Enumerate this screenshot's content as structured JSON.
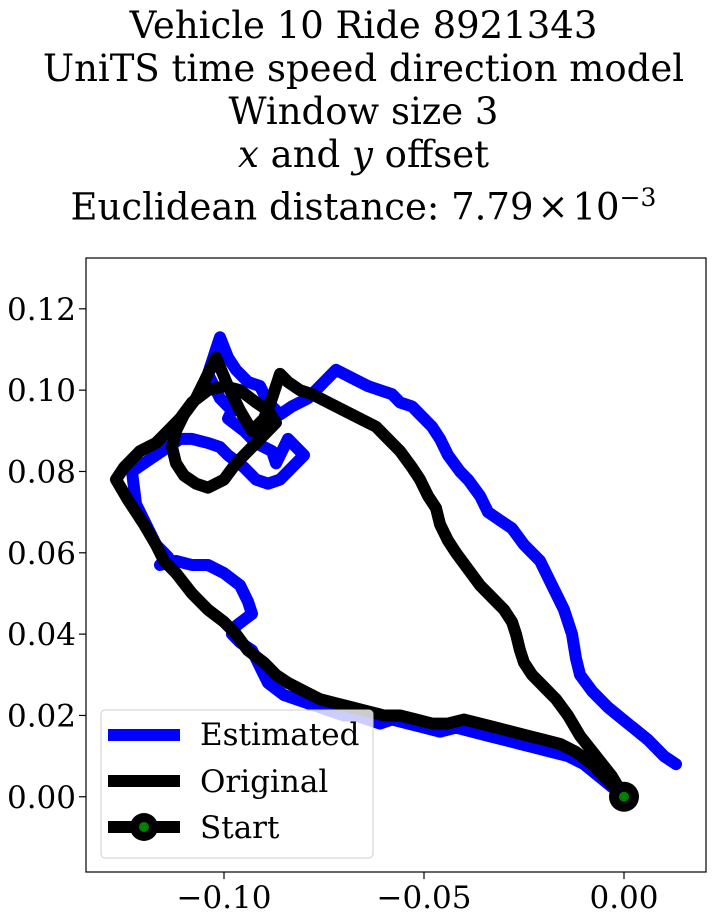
{
  "chart_data": {
    "type": "line",
    "title": {
      "line1": "Vehicle 10 Ride 8921343",
      "line2": "UniTS time speed direction model",
      "line3": "Window size 3",
      "line4_x": "x",
      "line4_and": " and ",
      "line4_y": "y",
      "line4_rest": " offset",
      "line5_prefix": "Euclidean distance: 7.79",
      "line5_times": "×",
      "line5_base": "10",
      "line5_exp": "−3"
    },
    "xlabel": "",
    "ylabel": "",
    "xlim": [
      -0.1345,
      0.0205
    ],
    "ylim": [
      -0.0185,
      0.1325
    ],
    "grid": false,
    "legend_position": "lower-left",
    "x_ticks": [
      {
        "value": -0.1,
        "label": "−0.10"
      },
      {
        "value": -0.05,
        "label": "−0.05"
      },
      {
        "value": 0.0,
        "label": "0.00"
      }
    ],
    "y_ticks": [
      {
        "value": 0.0,
        "label": "0.00"
      },
      {
        "value": 0.02,
        "label": "0.02"
      },
      {
        "value": 0.04,
        "label": "0.04"
      },
      {
        "value": 0.06,
        "label": "0.06"
      },
      {
        "value": 0.08,
        "label": "0.08"
      },
      {
        "value": 0.1,
        "label": "0.10"
      },
      {
        "value": 0.12,
        "label": "0.12"
      }
    ],
    "series": [
      {
        "name": "Estimated",
        "color": "#0000ff",
        "x": [
          0.013,
          0.01,
          0.006,
          0.001,
          -0.004,
          -0.008,
          -0.011,
          -0.012,
          -0.013,
          -0.015,
          -0.018,
          -0.021,
          -0.025,
          -0.028,
          -0.031,
          -0.034,
          -0.036,
          -0.039,
          -0.041,
          -0.044,
          -0.046,
          -0.048,
          -0.051,
          -0.053,
          -0.056,
          -0.058,
          -0.061,
          -0.064,
          -0.068,
          -0.072,
          -0.076,
          -0.079,
          -0.083,
          -0.086,
          -0.089,
          -0.091,
          -0.094,
          -0.097,
          -0.099,
          -0.101,
          -0.104,
          -0.101,
          -0.098,
          -0.099,
          -0.095,
          -0.092,
          -0.088,
          -0.087,
          -0.084,
          -0.08,
          -0.083,
          -0.086,
          -0.089,
          -0.092,
          -0.095,
          -0.099,
          -0.101,
          -0.104,
          -0.108,
          -0.111,
          -0.114,
          -0.117,
          -0.12,
          -0.123,
          -0.122,
          -0.119,
          -0.117,
          -0.115,
          -0.114,
          -0.116,
          -0.112,
          -0.108,
          -0.104,
          -0.1,
          -0.096,
          -0.094,
          -0.093,
          -0.097,
          -0.098,
          -0.096,
          -0.093,
          -0.091,
          -0.089,
          -0.085,
          -0.082,
          -0.079,
          -0.076,
          -0.073,
          -0.07,
          -0.067,
          -0.064,
          -0.061,
          -0.058,
          -0.054,
          -0.05,
          -0.046,
          -0.042,
          -0.038,
          -0.034,
          -0.03,
          -0.026,
          -0.022,
          -0.018,
          -0.014,
          -0.01,
          -0.005,
          0.0
        ],
        "y": [
          0.008,
          0.01,
          0.014,
          0.018,
          0.022,
          0.026,
          0.03,
          0.034,
          0.04,
          0.046,
          0.052,
          0.058,
          0.062,
          0.066,
          0.068,
          0.07,
          0.074,
          0.078,
          0.08,
          0.084,
          0.088,
          0.091,
          0.094,
          0.096,
          0.097,
          0.099,
          0.1,
          0.101,
          0.103,
          0.105,
          0.101,
          0.098,
          0.096,
          0.094,
          0.097,
          0.101,
          0.102,
          0.105,
          0.108,
          0.113,
          0.104,
          0.098,
          0.095,
          0.093,
          0.09,
          0.087,
          0.085,
          0.082,
          0.088,
          0.084,
          0.081,
          0.078,
          0.077,
          0.078,
          0.081,
          0.084,
          0.086,
          0.087,
          0.088,
          0.088,
          0.086,
          0.084,
          0.082,
          0.08,
          0.072,
          0.066,
          0.062,
          0.06,
          0.059,
          0.057,
          0.058,
          0.057,
          0.057,
          0.055,
          0.052,
          0.048,
          0.045,
          0.042,
          0.04,
          0.038,
          0.036,
          0.032,
          0.028,
          0.025,
          0.024,
          0.023,
          0.022,
          0.021,
          0.02,
          0.02,
          0.019,
          0.018,
          0.019,
          0.018,
          0.017,
          0.016,
          0.017,
          0.016,
          0.015,
          0.014,
          0.013,
          0.012,
          0.011,
          0.01,
          0.008,
          0.004,
          0.0
        ]
      },
      {
        "name": "Original",
        "color": "#000000",
        "x": [
          0.0,
          -0.003,
          -0.007,
          -0.011,
          -0.014,
          -0.017,
          -0.02,
          -0.023,
          -0.025,
          -0.026,
          -0.027,
          -0.028,
          -0.03,
          -0.033,
          -0.036,
          -0.039,
          -0.042,
          -0.044,
          -0.046,
          -0.047,
          -0.049,
          -0.051,
          -0.053,
          -0.056,
          -0.059,
          -0.062,
          -0.066,
          -0.07,
          -0.074,
          -0.078,
          -0.081,
          -0.084,
          -0.086,
          -0.088,
          -0.09,
          -0.093,
          -0.096,
          -0.099,
          -0.102,
          -0.104,
          -0.107,
          -0.11,
          -0.112,
          -0.113,
          -0.112,
          -0.11,
          -0.107,
          -0.104,
          -0.1,
          -0.097,
          -0.093,
          -0.09,
          -0.087,
          -0.089,
          -0.092,
          -0.096,
          -0.1,
          -0.104,
          -0.108,
          -0.111,
          -0.114,
          -0.117,
          -0.121,
          -0.125,
          -0.127,
          -0.124,
          -0.12,
          -0.117,
          -0.115,
          -0.112,
          -0.108,
          -0.104,
          -0.1,
          -0.097,
          -0.094,
          -0.09,
          -0.087,
          -0.084,
          -0.08,
          -0.076,
          -0.072,
          -0.068,
          -0.064,
          -0.06,
          -0.056,
          -0.052,
          -0.048,
          -0.044,
          -0.04,
          -0.036,
          -0.032,
          -0.028,
          -0.024,
          -0.02,
          -0.016,
          -0.012,
          -0.008,
          -0.004,
          0.0
        ],
        "y": [
          0.0,
          0.005,
          0.01,
          0.015,
          0.02,
          0.024,
          0.027,
          0.03,
          0.033,
          0.036,
          0.04,
          0.043,
          0.046,
          0.049,
          0.052,
          0.056,
          0.06,
          0.063,
          0.067,
          0.071,
          0.074,
          0.078,
          0.081,
          0.085,
          0.088,
          0.091,
          0.093,
          0.095,
          0.097,
          0.099,
          0.1,
          0.102,
          0.104,
          0.098,
          0.093,
          0.09,
          0.095,
          0.101,
          0.108,
          0.104,
          0.098,
          0.094,
          0.09,
          0.086,
          0.082,
          0.079,
          0.077,
          0.076,
          0.078,
          0.082,
          0.086,
          0.089,
          0.092,
          0.095,
          0.097,
          0.1,
          0.101,
          0.1,
          0.097,
          0.093,
          0.09,
          0.087,
          0.085,
          0.081,
          0.078,
          0.073,
          0.067,
          0.062,
          0.058,
          0.055,
          0.05,
          0.046,
          0.043,
          0.04,
          0.036,
          0.033,
          0.03,
          0.028,
          0.026,
          0.024,
          0.023,
          0.022,
          0.021,
          0.02,
          0.02,
          0.019,
          0.018,
          0.018,
          0.019,
          0.018,
          0.017,
          0.016,
          0.015,
          0.014,
          0.013,
          0.011,
          0.008,
          0.004,
          0.0
        ]
      },
      {
        "name": "Start",
        "color": "#000000",
        "marker_color": "#008000",
        "x": [
          0.0
        ],
        "y": [
          0.0
        ]
      }
    ]
  }
}
